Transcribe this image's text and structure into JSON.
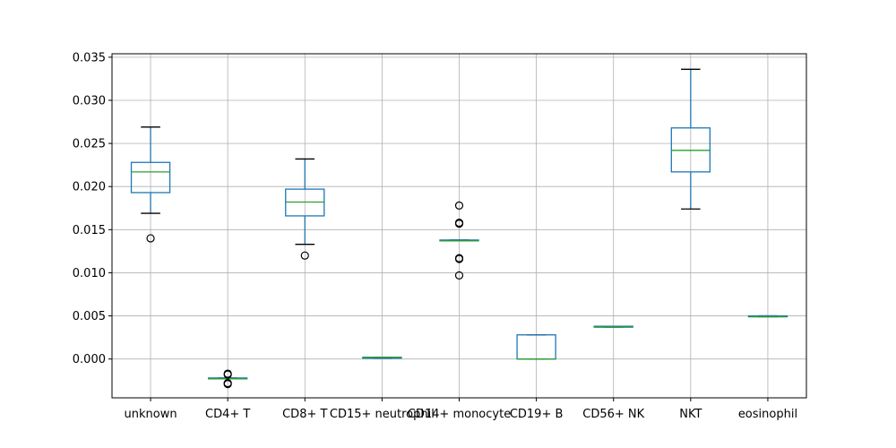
{
  "chart_data": {
    "type": "box",
    "categories": [
      "unknown",
      "CD4+ T",
      "CD8+ T",
      "CD15+ neutrophil",
      "CD14+ monocyte",
      "CD19+ B",
      "CD56+ NK",
      "NKT",
      "eosinophil"
    ],
    "boxes": [
      {
        "whislo": 0.0169,
        "q1": 0.0193,
        "med": 0.0217,
        "q3": 0.0228,
        "whishi": 0.0269,
        "fliers": [
          0.014
        ]
      },
      {
        "whislo": -0.0023,
        "q1": -0.0023,
        "med": -0.0023,
        "q3": -0.0022,
        "whishi": -0.0022,
        "fliers": [
          -0.0017,
          -0.0018,
          -0.0028,
          -0.0029
        ]
      },
      {
        "whislo": 0.0133,
        "q1": 0.0166,
        "med": 0.0182,
        "q3": 0.0197,
        "whishi": 0.0232,
        "fliers": [
          0.012
        ]
      },
      {
        "whislo": 0.0001,
        "q1": 0.0001,
        "med": 0.0002,
        "q3": 0.0002,
        "whishi": 0.0002,
        "fliers": []
      },
      {
        "whislo": 0.0137,
        "q1": 0.0137,
        "med": 0.0137,
        "q3": 0.0138,
        "whishi": 0.0138,
        "fliers": [
          0.0178,
          0.0158,
          0.0157,
          0.0117,
          0.0116,
          0.0097
        ]
      },
      {
        "whislo": 0.0,
        "q1": 0.0,
        "med": 0.0,
        "q3": 0.0028,
        "whishi": 0.0028,
        "fliers": []
      },
      {
        "whislo": 0.0037,
        "q1": 0.0037,
        "med": 0.0037,
        "q3": 0.0038,
        "whishi": 0.0038,
        "fliers": []
      },
      {
        "whislo": 0.0174,
        "q1": 0.0217,
        "med": 0.0242,
        "q3": 0.0268,
        "whishi": 0.0336,
        "fliers": []
      },
      {
        "whislo": 0.0049,
        "q1": 0.0049,
        "med": 0.0049,
        "q3": 0.005,
        "whishi": 0.005,
        "fliers": []
      }
    ],
    "yticks": [
      "0.000",
      "0.005",
      "0.010",
      "0.015",
      "0.020",
      "0.025",
      "0.030",
      "0.035"
    ],
    "ylim": [
      -0.0045,
      0.0354
    ],
    "grid": true,
    "title": "",
    "xlabel": "",
    "ylabel": ""
  }
}
